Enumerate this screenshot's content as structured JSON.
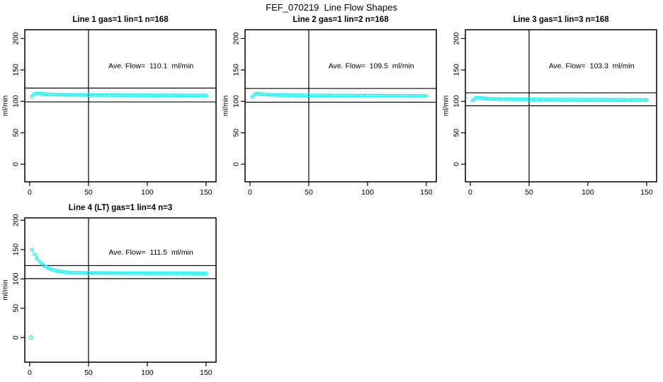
{
  "page_title": "FEF_070219  Line Flow Shapes",
  "colors": {
    "marker": "#00FFFF",
    "axis": "#000000",
    "background": "#FFFFFF"
  },
  "chart_data": [
    {
      "type": "scatter",
      "title": "Line 1 gas=1 lin=1 n=168",
      "annotation": "Ave. Flow=  110.1  ml/min",
      "ave_flow_ml_min": 110.1,
      "ylabel": "ml/min",
      "xticks": [
        0,
        50,
        100,
        150
      ],
      "yticks": [
        0,
        50,
        100,
        150,
        200
      ],
      "xlim": [
        -4.2,
        158.5
      ],
      "ylim": [
        -28,
        214
      ],
      "grid": false,
      "vline_x": 50,
      "hlines": [
        121.1,
        99.1
      ],
      "marker": "open-circle",
      "x_start": 2,
      "x_step": 2,
      "y": [
        108.0,
        112.2,
        113.0,
        112.6,
        112.2,
        111.8,
        111.5,
        111.3,
        111.2,
        111.0,
        110.9,
        110.7,
        110.8,
        110.6,
        110.7,
        110.5,
        110.6,
        110.4,
        110.5,
        110.4,
        110.3,
        110.5,
        110.2,
        110.4,
        110.3,
        110.1,
        110.3,
        110.2,
        110.0,
        110.2,
        110.1,
        110.0,
        110.2,
        109.9,
        110.1,
        110.0,
        109.9,
        110.1,
        109.8,
        110.0,
        109.9,
        110.1,
        109.8,
        110.0,
        109.9,
        109.7,
        110.0,
        109.8,
        109.9,
        109.7,
        109.9,
        109.8,
        109.6,
        109.9,
        109.7,
        109.8,
        109.6,
        109.8,
        109.7,
        109.5,
        109.8,
        109.6,
        109.7,
        109.5,
        109.7,
        109.6,
        109.4,
        109.7,
        109.5,
        109.6,
        109.4,
        109.6,
        109.5,
        109.3,
        109.5
      ],
      "extra_points": []
    },
    {
      "type": "scatter",
      "title": "Line 2 gas=1 lin=2 n=168",
      "annotation": "Ave. Flow=  109.5  ml/min",
      "ave_flow_ml_min": 109.5,
      "ylabel": "ml/min",
      "xticks": [
        0,
        50,
        100,
        150
      ],
      "yticks": [
        0,
        50,
        100,
        150,
        200
      ],
      "xlim": [
        -4.2,
        158.5
      ],
      "ylim": [
        -28,
        214
      ],
      "grid": false,
      "vline_x": 50,
      "hlines": [
        120.5,
        98.6
      ],
      "marker": "open-circle",
      "x_start": 2,
      "x_step": 2,
      "y": [
        107.5,
        111.6,
        112.4,
        112.0,
        111.6,
        111.2,
        110.9,
        110.7,
        110.5,
        110.4,
        110.3,
        110.1,
        110.2,
        110.0,
        110.1,
        109.9,
        110.0,
        109.8,
        109.9,
        109.8,
        109.7,
        109.9,
        109.6,
        109.8,
        109.7,
        109.5,
        109.7,
        109.6,
        109.4,
        109.6,
        109.5,
        109.4,
        109.6,
        109.3,
        109.5,
        109.4,
        109.3,
        109.5,
        109.2,
        109.4,
        109.3,
        109.5,
        109.2,
        109.4,
        109.3,
        109.1,
        109.4,
        109.2,
        109.3,
        109.1,
        109.3,
        109.2,
        109.0,
        109.3,
        109.1,
        109.2,
        109.0,
        109.2,
        109.1,
        108.9,
        109.2,
        109.0,
        109.1,
        108.9,
        109.1,
        109.0,
        108.8,
        109.1,
        108.9,
        109.0,
        108.8,
        109.0,
        108.9,
        108.7,
        108.9
      ],
      "extra_points": []
    },
    {
      "type": "scatter",
      "title": "Line 3 gas=1 lin=3 n=168",
      "annotation": "Ave. Flow=  103.3  ml/min",
      "ave_flow_ml_min": 103.3,
      "ylabel": "ml/min",
      "xticks": [
        0,
        50,
        100,
        150
      ],
      "yticks": [
        0,
        50,
        100,
        150,
        200
      ],
      "xlim": [
        -4.2,
        158.5
      ],
      "ylim": [
        -28,
        214
      ],
      "grid": false,
      "vline_x": 50,
      "hlines": [
        113.6,
        93.0
      ],
      "marker": "open-circle",
      "x_start": 2,
      "x_step": 2,
      "y": [
        101.5,
        105.3,
        106.0,
        105.6,
        105.2,
        104.8,
        104.5,
        104.3,
        104.1,
        104.0,
        103.9,
        103.7,
        103.8,
        103.6,
        103.7,
        103.5,
        103.6,
        103.4,
        103.5,
        103.4,
        103.3,
        103.5,
        103.2,
        103.4,
        103.3,
        103.1,
        103.3,
        103.2,
        103.0,
        103.2,
        103.1,
        103.0,
        103.2,
        102.9,
        103.1,
        103.0,
        102.9,
        103.1,
        102.8,
        103.0,
        102.9,
        103.1,
        102.8,
        103.0,
        102.9,
        102.7,
        103.0,
        102.8,
        102.9,
        102.7,
        102.9,
        102.8,
        102.6,
        102.9,
        102.7,
        102.8,
        102.6,
        102.8,
        102.7,
        102.5,
        102.8,
        102.6,
        102.7,
        102.5,
        102.7,
        102.6,
        102.4,
        102.7,
        102.5,
        102.6,
        102.4,
        102.6,
        102.5,
        102.3,
        102.5
      ],
      "extra_points": []
    },
    {
      "type": "scatter",
      "title": "Line 4 (LT) gas=1 lin=4 n=3",
      "annotation": "Ave. Flow=  111.5  ml/min",
      "ave_flow_ml_min": 111.5,
      "ylabel": "ml/min",
      "xticks": [
        0,
        50,
        100,
        150
      ],
      "yticks": [
        0,
        50,
        100,
        150,
        200
      ],
      "xlim": [
        -4.2,
        158.5
      ],
      "ylim": [
        -42,
        204
      ],
      "grid": false,
      "vline_x": 50,
      "hlines": [
        122.7,
        100.4
      ],
      "marker": "open-circle",
      "x_start": 2,
      "x_step": 2,
      "y": [
        150.0,
        142.0,
        135.7,
        130.5,
        126.4,
        123.1,
        120.5,
        118.4,
        116.8,
        115.4,
        114.3,
        113.5,
        112.8,
        112.2,
        111.8,
        111.4,
        111.1,
        110.9,
        110.7,
        110.6,
        110.5,
        110.4,
        110.3,
        110.2,
        110.2,
        110.1,
        110.2,
        110.0,
        110.1,
        110.0,
        109.9,
        110.1,
        110.0,
        109.9,
        110.0,
        109.9,
        110.0,
        109.8,
        110.0,
        109.9,
        109.8,
        109.9,
        109.7,
        109.9,
        109.8,
        109.7,
        109.9,
        109.8,
        109.6,
        109.8,
        109.7,
        109.8,
        109.6,
        109.8,
        109.7,
        109.5,
        109.7,
        109.6,
        109.7,
        109.5,
        109.7,
        109.6,
        109.4,
        109.6,
        109.5,
        109.6,
        109.4,
        109.6,
        109.5,
        109.3,
        109.5,
        109.4,
        109.5,
        109.3,
        109.4
      ],
      "extra_points": [
        [
          1,
          0
        ]
      ]
    }
  ]
}
